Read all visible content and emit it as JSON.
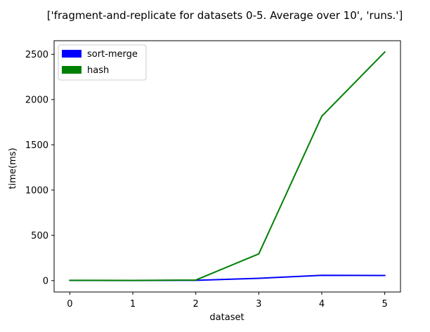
{
  "chart_data": {
    "type": "line",
    "title": "['fragment-and-replicate for datasets 0-5. Average over 10', 'runs.']",
    "xlabel": "dataset",
    "ylabel": "time(ms)",
    "x": [
      0,
      1,
      2,
      3,
      4,
      5
    ],
    "xlim": [
      -0.25,
      5.25
    ],
    "ylim": [
      -126,
      2650
    ],
    "xticks": [
      0,
      1,
      2,
      3,
      4,
      5
    ],
    "yticks": [
      0,
      500,
      1000,
      1500,
      2000,
      2500
    ],
    "xtick_labels": [
      "0",
      "1",
      "2",
      "3",
      "4",
      "5"
    ],
    "ytick_labels": [
      "0",
      "500",
      "1000",
      "1500",
      "2000",
      "2500"
    ],
    "grid": false,
    "legend_position": "upper-left",
    "series": [
      {
        "name": "sort-merge",
        "color": "#0000ff",
        "values": [
          2,
          1,
          3,
          25,
          58,
          56
        ]
      },
      {
        "name": "hash",
        "color": "#008000",
        "values": [
          3,
          2,
          6,
          295,
          1815,
          2525
        ]
      }
    ]
  }
}
